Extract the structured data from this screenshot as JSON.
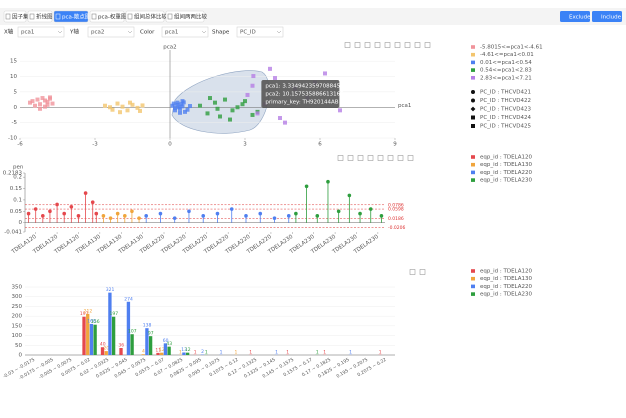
{
  "toolbar": {
    "tabs": [
      "因子集",
      "折线图",
      "pca-散点图",
      "pca-权重图",
      "组间总体比较",
      "组间两两比较"
    ],
    "buttons": [
      "Exclude",
      "Include"
    ],
    "controls": [
      {
        "label": "X轴",
        "value": "pca1"
      },
      {
        "label": "Y轴",
        "value": "pca2"
      },
      {
        "label": "Color",
        "value": "pca1"
      },
      {
        "label": "Shape",
        "value": "PC_ID"
      }
    ]
  },
  "chart_data": [
    {
      "type": "scatter",
      "x_label": "pca1",
      "y_label": "pca2",
      "xlim": [
        -6,
        9
      ],
      "xticks": [
        -6,
        -3,
        0,
        3,
        6,
        9
      ],
      "ylim": [
        -10,
        17
      ],
      "yticks": [
        -10,
        -5,
        0,
        5,
        10,
        15
      ],
      "series": [
        {
          "name": "-5.8015<=pca1<-4.61",
          "color": "#f0939b",
          "x": [
            -5.6,
            -5.4,
            -5.3,
            -5.2,
            -5.1,
            -5.0,
            -4.9,
            -4.8,
            -4.7,
            -5.5,
            -5.2,
            -4.9,
            -5.0,
            -4.8
          ],
          "values": [
            1.5,
            0.5,
            2.5,
            1.0,
            3.0,
            0.2,
            1.8,
            2.8,
            1.2,
            2.0,
            -0.5,
            0.8,
            2.2,
            3.2
          ]
        },
        {
          "name": "-4.61<=pca1<0.01",
          "color": "#f3c56e",
          "x": [
            -2.6,
            -2.3,
            -2.1,
            -1.9,
            -1.7,
            -1.5,
            -1.3,
            -1.1,
            -2.0,
            -1.6,
            -2.4,
            -1.2
          ],
          "values": [
            0.5,
            -0.8,
            1.2,
            0.2,
            -1.0,
            0.8,
            -0.2,
            0.6,
            -1.6,
            1.5,
            0.0,
            -1.2
          ]
        },
        {
          "name": "0.01<=pca1<0.54",
          "color": "#4f7ff0",
          "x": [
            0.1,
            0.2,
            0.3,
            0.35,
            0.4,
            0.45,
            0.5,
            0.6,
            0.2,
            0.3,
            0.5,
            0.7,
            0.15,
            0.4,
            0.55,
            0.8
          ],
          "values": [
            0.5,
            -1.0,
            1.5,
            0.0,
            -0.5,
            1.0,
            2.0,
            -1.5,
            -0.2,
            0.8,
            0.3,
            -0.8,
            1.2,
            -1.8,
            1.6,
            0.4
          ]
        },
        {
          "name": "0.54<=pca1<2.83",
          "color": "#2e9e3e",
          "x": [
            1.2,
            1.5,
            1.8,
            2.0,
            2.2,
            2.5,
            2.7,
            3.0,
            3.3,
            1.6,
            2.4,
            2.9,
            3.5,
            1.9
          ],
          "values": [
            0.5,
            -2.0,
            1.5,
            -3.0,
            2.5,
            -1.0,
            0.0,
            2.0,
            -2.5,
            3.0,
            -4.0,
            1.0,
            -1.5,
            -0.5
          ]
        },
        {
          "name": "2.83<=pca1<7.21",
          "color": "#b57ee5",
          "x": [
            3.1,
            3.3,
            3.5,
            3.8,
            4.2,
            4.6,
            5.0,
            5.5,
            6.2,
            6.8,
            4.0,
            4.4,
            5.8,
            3.3349
          ],
          "values": [
            4.0,
            7.0,
            -2.0,
            1.0,
            9.5,
            -5.0,
            6.0,
            3.0,
            11.0,
            -1.0,
            12.5,
            -3.5,
            8.0,
            10.1575
          ]
        }
      ],
      "shape_legend": [
        "PC_ID : THCVD421",
        "PC_ID : THCVD422",
        "PC_ID : THCVD423",
        "PC_ID : THCVD424",
        "PC_ID : THCVD425"
      ],
      "tooltip": [
        "pca1: 3.3349423597088452",
        "pca2: 10.157535886613165",
        "primary_key: TH920144AB"
      ]
    },
    {
      "type": "lollipop",
      "y_label": "pen",
      "xlim": [
        0,
        101
      ],
      "ylim": [
        -0.041,
        0.2183
      ],
      "yticks": [
        -0.041,
        0,
        0.05,
        0.1,
        0.15,
        0.2,
        0.2183
      ],
      "ref_lines": [
        0.0786,
        0.0598,
        0.0186,
        -0.0206
      ],
      "xticks": [
        {
          "value": 3,
          "label": "TDELA120"
        },
        {
          "value": 9,
          "label": "TDELA120"
        },
        {
          "value": 15,
          "label": "TDELA120"
        },
        {
          "value": 21,
          "label": "TDELA130"
        },
        {
          "value": 27,
          "label": "TDELA130"
        },
        {
          "value": 33,
          "label": "TDELA130"
        },
        {
          "value": 39,
          "label": "TDELA220"
        },
        {
          "value": 45,
          "label": "TDELA220"
        },
        {
          "value": 51,
          "label": "TDELA220"
        },
        {
          "value": 57,
          "label": "TDELA220"
        },
        {
          "value": 63,
          "label": "TDELA220"
        },
        {
          "value": 69,
          "label": "TDELA220"
        },
        {
          "value": 75,
          "label": "TDELA230"
        },
        {
          "value": 81,
          "label": "TDELA230"
        },
        {
          "value": 87,
          "label": "TDELA230"
        },
        {
          "value": 93,
          "label": "TDELA230"
        },
        {
          "value": 99,
          "label": "TDELA230"
        }
      ],
      "series": [
        {
          "name": "eqp_id : TDELA120",
          "color": "#e5484d",
          "x": [
            1,
            3,
            5,
            7,
            9,
            11,
            13,
            15,
            17,
            19,
            20
          ],
          "values": [
            0.04,
            0.06,
            0.03,
            0.05,
            0.08,
            0.04,
            0.07,
            0.03,
            0.13,
            0.09,
            0.04
          ]
        },
        {
          "name": "eqp_id : TDELA130",
          "color": "#f0a53c",
          "x": [
            22,
            24,
            26,
            28,
            30,
            32
          ],
          "values": [
            0.03,
            0.02,
            0.04,
            0.03,
            0.05,
            0.02
          ]
        },
        {
          "name": "eqp_id : TDELA220",
          "color": "#4f7ff0",
          "x": [
            34,
            38,
            42,
            46,
            50,
            54,
            58,
            62,
            66,
            70,
            74
          ],
          "values": [
            0.03,
            0.04,
            0.02,
            0.05,
            0.03,
            0.04,
            0.06,
            0.03,
            0.04,
            0.02,
            0.03
          ]
        },
        {
          "name": "eqp_id : TDELA230",
          "color": "#2e9e3e",
          "x": [
            76,
            79,
            82,
            85,
            88,
            91,
            94,
            97,
            100
          ],
          "values": [
            0.04,
            0.16,
            0.03,
            0.18,
            0.05,
            0.12,
            0.04,
            0.06,
            0.03
          ]
        }
      ]
    },
    {
      "type": "bar",
      "ylim": [
        0,
        350
      ],
      "yticks": [
        0,
        50,
        100,
        150,
        200,
        250,
        300,
        350
      ],
      "categories": [
        "-0.03 ~ -0.0175",
        "-0.0175 ~ -0.005",
        "-0.005 ~ 0.0075",
        "0.0075 ~ 0.02",
        "0.02 ~ 0.0325",
        "0.0325 ~ 0.045",
        "0.045 ~ 0.0575",
        "0.0575 ~ 0.07",
        "0.07 ~ 0.0825",
        "0.0825 ~ 0.095",
        "0.095 ~ 0.1075",
        "0.1075 ~ 0.12",
        "0.12 ~ 0.1325",
        "0.1325 ~ 0.145",
        "0.145 ~ 0.1575",
        "0.1575 ~ 0.17",
        "0.17 ~ 0.1825",
        "0.1825 ~ 0.195",
        "0.195 ~ 0.2075",
        "0.2075 ~ 0.22"
      ],
      "series": [
        {
          "name": "eqp_id : TDELA120",
          "color": "#e5484d",
          "values": [
            null,
            null,
            null,
            197,
            40,
            36,
            null,
            11,
            null,
            1,
            null,
            null,
            1,
            null,
            1,
            null,
            1,
            null,
            null,
            1
          ]
        },
        {
          "name": "eqp_id : TDELA130",
          "color": "#f0a53c",
          "values": [
            null,
            null,
            null,
            212,
            20,
            null,
            4,
            12,
            1,
            null,
            null,
            1,
            null,
            null,
            null,
            null,
            null,
            null,
            null,
            null
          ]
        },
        {
          "name": "eqp_id : TDELA220",
          "color": "#4f7ff0",
          "values": [
            null,
            null,
            null,
            160,
            321,
            274,
            138,
            60,
            13,
            2,
            1,
            null,
            null,
            1,
            null,
            null,
            null,
            1,
            null,
            null
          ]
        },
        {
          "name": "eqp_id : TDELA230",
          "color": "#2e9e3e",
          "values": [
            null,
            null,
            null,
            156,
            197,
            107,
            97,
            43,
            12,
            1,
            null,
            null,
            null,
            null,
            null,
            1,
            null,
            null,
            null,
            null
          ]
        }
      ]
    }
  ]
}
